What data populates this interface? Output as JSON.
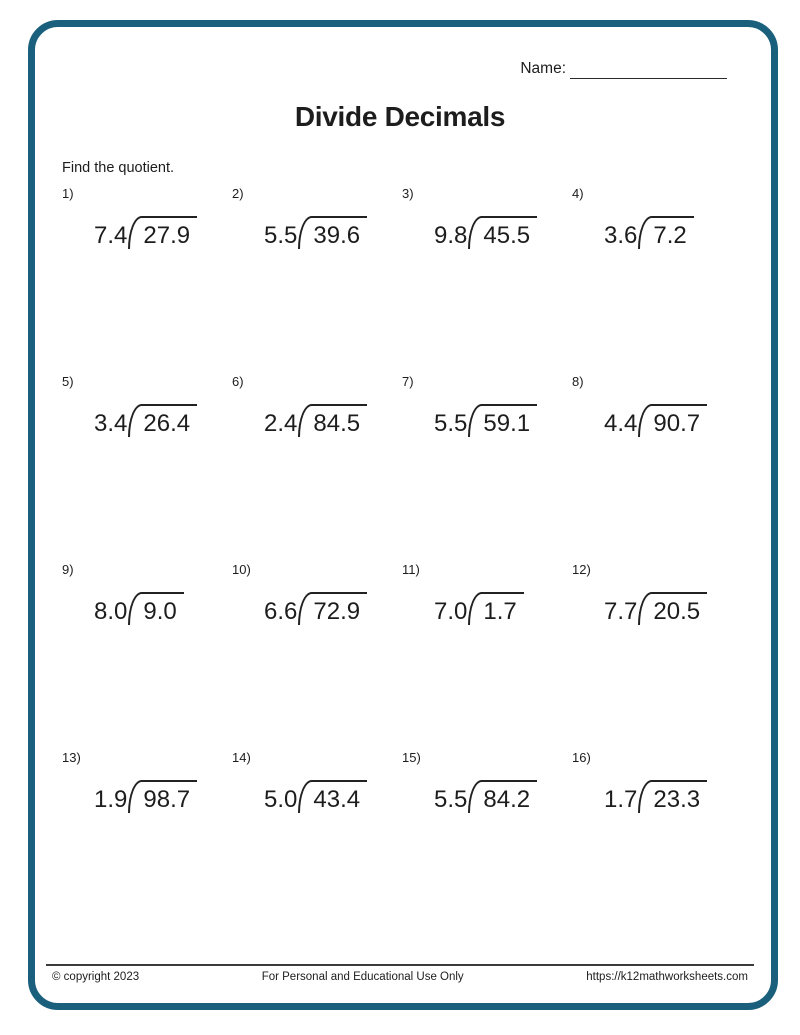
{
  "page": {
    "name_label": "Name:",
    "title": "Divide Decimals",
    "instruction": "Find the quotient."
  },
  "problems": [
    {
      "num": "1)",
      "divisor": "7.4",
      "dividend": "27.9"
    },
    {
      "num": "2)",
      "divisor": "5.5",
      "dividend": "39.6"
    },
    {
      "num": "3)",
      "divisor": "9.8",
      "dividend": "45.5"
    },
    {
      "num": "4)",
      "divisor": "3.6",
      "dividend": "7.2"
    },
    {
      "num": "5)",
      "divisor": "3.4",
      "dividend": "26.4"
    },
    {
      "num": "6)",
      "divisor": "2.4",
      "dividend": "84.5"
    },
    {
      "num": "7)",
      "divisor": "5.5",
      "dividend": "59.1"
    },
    {
      "num": "8)",
      "divisor": "4.4",
      "dividend": "90.7"
    },
    {
      "num": "9)",
      "divisor": "8.0",
      "dividend": "9.0"
    },
    {
      "num": "10)",
      "divisor": "6.6",
      "dividend": "72.9"
    },
    {
      "num": "11)",
      "divisor": "7.0",
      "dividend": "1.7"
    },
    {
      "num": "12)",
      "divisor": "7.7",
      "dividend": "20.5"
    },
    {
      "num": "13)",
      "divisor": "1.9",
      "dividend": "98.7"
    },
    {
      "num": "14)",
      "divisor": "5.0",
      "dividend": "43.4"
    },
    {
      "num": "15)",
      "divisor": "5.5",
      "dividend": "84.2"
    },
    {
      "num": "16)",
      "divisor": "1.7",
      "dividend": "23.3"
    }
  ],
  "footer": {
    "copyright": "© copyright 2023",
    "usage": "For Personal and Educational Use Only",
    "url": "https://k12mathworksheets.com"
  },
  "colors": {
    "frame_border": "#1a607c",
    "text": "#1d1d1d",
    "footer_line": "#3b3b3b"
  }
}
